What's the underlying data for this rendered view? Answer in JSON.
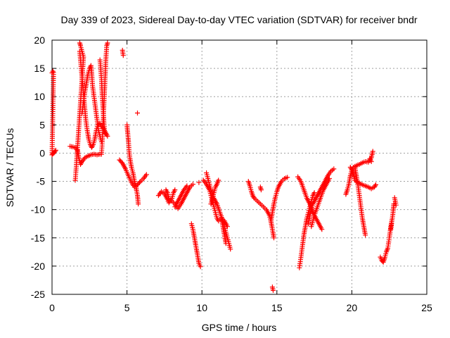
{
  "chart_data": {
    "type": "scatter",
    "title": "Day 339 of 2023, Sidereal Day-to-day VTEC variation (SDTVAR) for receiver bndr",
    "xlabel": "GPS time / hours",
    "ylabel": "SDTVAR / TECUs",
    "xlim": [
      0,
      25
    ],
    "ylim": [
      -25,
      20
    ],
    "xticks": [
      0,
      5,
      10,
      15,
      20,
      25
    ],
    "yticks": [
      -25,
      -20,
      -15,
      -10,
      -5,
      0,
      5,
      10,
      15,
      20
    ],
    "grid": true,
    "marker": "plus",
    "color": "#ff0000",
    "series": [
      {
        "points": [
          [
            0.0,
            14.2
          ],
          [
            0.05,
            14.5
          ],
          [
            0.1,
            14.3
          ],
          [
            0.0,
            -0.3
          ],
          [
            0.1,
            0.0
          ],
          [
            0.2,
            0.3
          ],
          [
            0.25,
            0.5
          ]
        ]
      },
      {
        "points": [
          [
            1.2,
            1.2
          ],
          [
            1.4,
            1.1
          ],
          [
            1.6,
            0.9
          ],
          [
            1.7,
            0.5
          ],
          [
            1.8,
            -1.0
          ],
          [
            1.9,
            -2.0
          ],
          [
            2.0,
            -1.5
          ],
          [
            2.2,
            -0.8
          ],
          [
            2.4,
            -0.5
          ],
          [
            2.6,
            -0.3
          ],
          [
            2.8,
            -0.2
          ],
          [
            3.0,
            -0.3
          ],
          [
            3.2,
            -0.2
          ]
        ]
      },
      {
        "points": [
          [
            1.55,
            -4.8
          ],
          [
            1.6,
            -3.0
          ],
          [
            1.65,
            -1.0
          ],
          [
            1.7,
            1.0
          ],
          [
            1.75,
            3.0
          ],
          [
            1.8,
            5.0
          ],
          [
            1.85,
            7.0
          ],
          [
            1.9,
            9.0
          ],
          [
            1.95,
            11.0
          ],
          [
            2.0,
            13.0
          ],
          [
            2.05,
            15.0
          ],
          [
            2.1,
            17.0
          ],
          [
            1.9,
            19.0
          ],
          [
            1.85,
            19.5
          ]
        ]
      },
      {
        "points": [
          [
            1.85,
            18.0
          ],
          [
            1.95,
            15.0
          ],
          [
            2.05,
            12.0
          ],
          [
            2.15,
            9.0
          ],
          [
            2.25,
            6.0
          ],
          [
            2.35,
            4.0
          ],
          [
            2.45,
            2.5
          ],
          [
            2.55,
            1.5
          ],
          [
            2.65,
            1.0
          ],
          [
            2.75,
            1.5
          ],
          [
            2.85,
            2.5
          ],
          [
            2.95,
            4.0
          ],
          [
            3.05,
            5.0
          ],
          [
            3.2,
            5.2
          ],
          [
            3.4,
            4.5
          ],
          [
            3.6,
            3.5
          ],
          [
            3.7,
            3.0
          ]
        ]
      },
      {
        "points": [
          [
            2.0,
            7.0
          ],
          [
            2.1,
            9.0
          ],
          [
            2.2,
            11.0
          ],
          [
            2.3,
            12.5
          ],
          [
            2.4,
            14.0
          ],
          [
            2.5,
            15.0
          ],
          [
            2.6,
            15.5
          ],
          [
            2.65,
            14.0
          ],
          [
            2.7,
            12.0
          ],
          [
            2.8,
            10.0
          ],
          [
            2.9,
            8.0
          ],
          [
            3.0,
            6.0
          ],
          [
            3.1,
            4.0
          ],
          [
            3.2,
            3.0
          ],
          [
            3.3,
            2.0
          ]
        ]
      },
      {
        "points": [
          [
            3.2,
            16.5
          ],
          [
            3.3,
            13.0
          ],
          [
            3.35,
            10.0
          ],
          [
            3.4,
            8.0
          ],
          [
            3.45,
            6.0
          ],
          [
            3.5,
            4.0
          ],
          [
            3.55,
            3.5
          ]
        ]
      },
      {
        "points": [
          [
            3.3,
            -0.2
          ],
          [
            3.35,
            2.0
          ],
          [
            3.4,
            5.0
          ],
          [
            3.45,
            8.0
          ],
          [
            3.5,
            11.0
          ],
          [
            3.55,
            14.0
          ],
          [
            3.6,
            17.0
          ],
          [
            3.65,
            19.0
          ],
          [
            3.7,
            19.5
          ]
        ]
      },
      {
        "points": [
          [
            4.7,
            18.2
          ],
          [
            4.75,
            17.3
          ]
        ]
      },
      {
        "points": [
          [
            4.5,
            -1.2
          ],
          [
            4.7,
            -1.8
          ],
          [
            4.9,
            -2.8
          ],
          [
            5.1,
            -4.0
          ],
          [
            5.3,
            -5.2
          ],
          [
            5.5,
            -6.0
          ],
          [
            5.7,
            -5.6
          ],
          [
            5.9,
            -5.0
          ],
          [
            6.1,
            -4.5
          ],
          [
            6.3,
            -3.8
          ]
        ]
      },
      {
        "points": [
          [
            5.0,
            5.0
          ],
          [
            5.05,
            3.5
          ],
          [
            5.1,
            2.0
          ],
          [
            5.15,
            0.0
          ],
          [
            5.2,
            -1.0
          ],
          [
            5.3,
            -2.5
          ],
          [
            5.4,
            -3.5
          ],
          [
            5.5,
            -5.0
          ],
          [
            5.6,
            -6.0
          ],
          [
            5.7,
            -7.5
          ],
          [
            5.75,
            -9.0
          ]
        ]
      },
      {
        "points": [
          [
            5.7,
            7.1
          ]
        ]
      },
      {
        "points": [
          [
            7.1,
            -7.5
          ],
          [
            7.3,
            -6.8
          ],
          [
            7.5,
            -7.2
          ],
          [
            7.7,
            -8.2
          ],
          [
            7.8,
            -8.8
          ],
          [
            8.0,
            -8.0
          ],
          [
            8.1,
            -7.0
          ],
          [
            8.2,
            -6.5
          ]
        ]
      },
      {
        "points": [
          [
            7.6,
            -6.5
          ],
          [
            7.7,
            -7.0
          ],
          [
            7.8,
            -8.0
          ],
          [
            8.0,
            -8.5
          ],
          [
            8.2,
            -9.0
          ],
          [
            8.4,
            -9.8
          ],
          [
            8.6,
            -9.0
          ],
          [
            8.8,
            -8.0
          ],
          [
            9.0,
            -7.0
          ],
          [
            9.2,
            -6.0
          ],
          [
            9.4,
            -5.5
          ]
        ]
      },
      {
        "points": [
          [
            8.2,
            -9.5
          ],
          [
            8.4,
            -8.5
          ],
          [
            8.6,
            -7.5
          ],
          [
            8.8,
            -6.5
          ],
          [
            9.0,
            -5.8
          ]
        ]
      },
      {
        "points": [
          [
            9.3,
            -12.5
          ],
          [
            9.4,
            -13.5
          ],
          [
            9.5,
            -15.0
          ],
          [
            9.6,
            -16.5
          ],
          [
            9.7,
            -18.0
          ],
          [
            9.8,
            -19.5
          ],
          [
            9.9,
            -20.1
          ]
        ]
      },
      {
        "points": [
          [
            9.8,
            -5.2
          ]
        ]
      },
      {
        "points": [
          [
            10.1,
            -4.8
          ],
          [
            10.3,
            -5.5
          ],
          [
            10.5,
            -6.5
          ],
          [
            10.6,
            -7.5
          ],
          [
            10.7,
            -8.5
          ],
          [
            10.8,
            -9.5
          ],
          [
            10.9,
            -10.5
          ],
          [
            11.0,
            -11.5
          ],
          [
            11.1,
            -12.0
          ],
          [
            11.3,
            -11.5
          ],
          [
            11.5,
            -12.0
          ],
          [
            11.7,
            -13.0
          ]
        ]
      },
      {
        "points": [
          [
            10.3,
            -3.5
          ],
          [
            10.4,
            -4.5
          ],
          [
            10.5,
            -5.5
          ],
          [
            10.6,
            -6.5
          ],
          [
            10.8,
            -8.0
          ],
          [
            11.0,
            -9.0
          ],
          [
            11.2,
            -10.5
          ],
          [
            11.4,
            -12.0
          ],
          [
            11.6,
            -14.0
          ],
          [
            11.8,
            -16.0
          ],
          [
            11.9,
            -17.0
          ]
        ]
      },
      {
        "points": [
          [
            10.6,
            -9.0
          ],
          [
            10.7,
            -8.0
          ],
          [
            10.8,
            -7.0
          ],
          [
            10.9,
            -6.0
          ],
          [
            11.0,
            -5.5
          ],
          [
            11.1,
            -4.8
          ]
        ]
      },
      {
        "points": [
          [
            11.3,
            -11.5
          ],
          [
            11.4,
            -13.0
          ],
          [
            11.5,
            -14.5
          ],
          [
            11.6,
            -16.0
          ]
        ]
      },
      {
        "points": [
          [
            13.1,
            -5.0
          ],
          [
            13.2,
            -5.8
          ],
          [
            13.3,
            -6.8
          ],
          [
            13.4,
            -7.6
          ],
          [
            13.5,
            -8.0
          ],
          [
            13.7,
            -8.5
          ],
          [
            13.9,
            -9.0
          ],
          [
            14.1,
            -9.5
          ],
          [
            14.3,
            -10.0
          ],
          [
            14.5,
            -11.0
          ],
          [
            14.6,
            -12.0
          ],
          [
            14.7,
            -13.5
          ],
          [
            14.8,
            -15.0
          ]
        ]
      },
      {
        "points": [
          [
            13.9,
            -6.0
          ],
          [
            13.95,
            -6.5
          ]
        ]
      },
      {
        "points": [
          [
            14.6,
            -12.0
          ],
          [
            14.7,
            -10.5
          ],
          [
            14.8,
            -9.0
          ],
          [
            14.9,
            -7.8
          ],
          [
            15.0,
            -6.8
          ],
          [
            15.1,
            -6.0
          ],
          [
            15.3,
            -5.0
          ],
          [
            15.5,
            -4.5
          ],
          [
            15.7,
            -4.3
          ]
        ]
      },
      {
        "points": [
          [
            14.7,
            -23.7
          ],
          [
            14.75,
            -24.3
          ]
        ]
      },
      {
        "points": [
          [
            16.4,
            -4.2
          ],
          [
            16.6,
            -5.0
          ],
          [
            16.8,
            -6.5
          ],
          [
            17.0,
            -8.0
          ],
          [
            17.2,
            -9.0
          ],
          [
            17.4,
            -10.5
          ],
          [
            17.6,
            -11.5
          ],
          [
            17.8,
            -12.5
          ],
          [
            18.0,
            -13.5
          ]
        ]
      },
      {
        "points": [
          [
            16.5,
            -20.3
          ],
          [
            16.6,
            -18.5
          ],
          [
            16.7,
            -16.5
          ],
          [
            16.8,
            -14.5
          ],
          [
            16.9,
            -13.0
          ],
          [
            17.0,
            -11.5
          ],
          [
            17.1,
            -10.5
          ],
          [
            17.2,
            -9.5
          ],
          [
            17.3,
            -8.5
          ],
          [
            17.4,
            -7.5
          ],
          [
            17.5,
            -7.0
          ]
        ]
      },
      {
        "points": [
          [
            17.1,
            -12.5
          ],
          [
            17.2,
            -11.0
          ],
          [
            17.3,
            -10.0
          ],
          [
            17.4,
            -9.0
          ],
          [
            17.6,
            -8.0
          ],
          [
            17.8,
            -7.0
          ],
          [
            18.0,
            -6.0
          ],
          [
            18.2,
            -5.0
          ],
          [
            18.4,
            -4.0
          ],
          [
            18.6,
            -3.2
          ],
          [
            18.8,
            -2.8
          ]
        ]
      },
      {
        "points": [
          [
            17.3,
            -13.0
          ],
          [
            17.5,
            -11.0
          ],
          [
            17.7,
            -9.5
          ],
          [
            17.9,
            -8.0
          ],
          [
            18.1,
            -6.5
          ],
          [
            18.3,
            -5.5
          ],
          [
            18.5,
            -4.5
          ]
        ]
      },
      {
        "points": [
          [
            19.6,
            -7.3
          ],
          [
            19.7,
            -6.5
          ],
          [
            19.8,
            -5.5
          ],
          [
            19.9,
            -4.0
          ],
          [
            20.0,
            -3.0
          ],
          [
            20.1,
            -2.5
          ],
          [
            20.3,
            -2.2
          ],
          [
            20.5,
            -2.0
          ],
          [
            20.7,
            -1.7
          ],
          [
            20.9,
            -1.5
          ],
          [
            21.1,
            -1.6
          ],
          [
            21.3,
            -0.8
          ],
          [
            21.4,
            0.3
          ]
        ]
      },
      {
        "points": [
          [
            19.9,
            -2.5
          ],
          [
            20.0,
            -3.0
          ],
          [
            20.1,
            -3.8
          ],
          [
            20.2,
            -4.8
          ],
          [
            20.3,
            -5.0
          ],
          [
            20.5,
            -5.3
          ],
          [
            20.7,
            -5.6
          ],
          [
            20.9,
            -5.8
          ],
          [
            21.1,
            -6.0
          ],
          [
            21.3,
            -6.3
          ],
          [
            21.5,
            -6.0
          ],
          [
            21.6,
            -5.6
          ]
        ]
      },
      {
        "points": [
          [
            20.2,
            -2.5
          ],
          [
            20.3,
            -4.0
          ],
          [
            20.4,
            -5.5
          ],
          [
            20.5,
            -7.5
          ],
          [
            20.6,
            -9.5
          ],
          [
            20.7,
            -11.5
          ],
          [
            20.8,
            -13.0
          ],
          [
            20.9,
            -14.5
          ]
        ]
      },
      {
        "points": [
          [
            21.2,
            -1.0
          ],
          [
            21.3,
            -1.5
          ]
        ]
      },
      {
        "points": [
          [
            21.9,
            -18.4
          ],
          [
            22.0,
            -19.0
          ],
          [
            22.1,
            -19.3
          ],
          [
            22.2,
            -18.5
          ],
          [
            22.3,
            -17.5
          ],
          [
            22.4,
            -16.8
          ],
          [
            22.5,
            -15.0
          ],
          [
            22.6,
            -13.0
          ],
          [
            22.7,
            -11.5
          ],
          [
            22.75,
            -10.5
          ],
          [
            22.8,
            -9.0
          ]
        ]
      },
      {
        "points": [
          [
            22.6,
            -13.5
          ],
          [
            22.65,
            -12.5
          ]
        ]
      },
      {
        "points": [
          [
            22.85,
            -7.9
          ],
          [
            22.9,
            -8.5
          ],
          [
            22.95,
            -9.2
          ]
        ]
      }
    ]
  }
}
